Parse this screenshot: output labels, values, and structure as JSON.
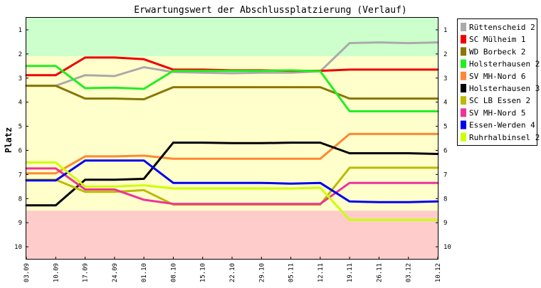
{
  "chart_data": {
    "type": "line",
    "title": "Erwartungswert der Abschlussplatzierung (Verlauf)",
    "xlabel": "",
    "ylabel": "Platz",
    "y_reversed": true,
    "ylim": [
      0.5,
      10.5
    ],
    "y_ticks": [
      "1",
      "2",
      "3",
      "4",
      "5",
      "6",
      "7",
      "8",
      "9",
      "10"
    ],
    "x": [
      "03.09",
      "10.09",
      "17.09",
      "24.09",
      "01.10",
      "08.10",
      "15.10",
      "22.10",
      "29.10",
      "05.11",
      "12.11",
      "19.11",
      "26.11",
      "03.12",
      "10.12"
    ],
    "bands": [
      {
        "from": 0.5,
        "to": 2.1,
        "color": "#ccffcc"
      },
      {
        "from": 2.1,
        "to": 8.5,
        "color": "#ffffcc"
      },
      {
        "from": 8.5,
        "to": 10.5,
        "color": "#ffcccc"
      }
    ],
    "grid": false,
    "legend_position": "right",
    "series": [
      {
        "name": "Rüttenscheid 2",
        "color": "#aaaaaa",
        "values": [
          3.32,
          3.32,
          2.88,
          2.92,
          2.55,
          2.75,
          2.78,
          2.8,
          2.78,
          2.78,
          2.72,
          1.55,
          1.52,
          1.55,
          1.52
        ]
      },
      {
        "name": "SC Mülheim 1",
        "color": "#ee0000",
        "values": [
          2.88,
          2.88,
          2.15,
          2.15,
          2.22,
          2.65,
          2.65,
          2.68,
          2.68,
          2.7,
          2.7,
          2.65,
          2.65,
          2.65,
          2.65
        ]
      },
      {
        "name": "WD Borbeck 2",
        "color": "#887700",
        "values": [
          3.32,
          3.32,
          3.85,
          3.85,
          3.88,
          3.38,
          3.38,
          3.38,
          3.38,
          3.38,
          3.38,
          3.85,
          3.85,
          3.85,
          3.85
        ]
      },
      {
        "name": "Holsterhausen 2",
        "color": "#22ee22",
        "values": [
          2.5,
          2.5,
          3.42,
          3.4,
          3.45,
          2.7,
          2.7,
          2.7,
          2.7,
          2.68,
          2.72,
          4.38,
          4.38,
          4.38,
          4.38
        ]
      },
      {
        "name": "SV MH-Nord 6",
        "color": "#ff8833",
        "values": [
          6.95,
          6.95,
          6.25,
          6.25,
          6.22,
          6.35,
          6.35,
          6.35,
          6.35,
          6.35,
          6.35,
          5.32,
          5.32,
          5.32,
          5.32
        ]
      },
      {
        "name": "Holsterhausen 3",
        "color": "#000000",
        "values": [
          8.28,
          8.28,
          7.22,
          7.22,
          7.18,
          5.68,
          5.68,
          5.7,
          5.7,
          5.68,
          5.68,
          6.12,
          6.12,
          6.12,
          6.15
        ]
      },
      {
        "name": "SC LB Essen 2",
        "color": "#bbbb00",
        "values": [
          7.22,
          7.22,
          7.72,
          7.72,
          7.65,
          8.25,
          8.25,
          8.25,
          8.25,
          8.25,
          8.25,
          6.72,
          6.72,
          6.72,
          6.72
        ]
      },
      {
        "name": "SV MH-Nord 5",
        "color": "#ee3399",
        "values": [
          6.75,
          6.75,
          7.62,
          7.62,
          8.05,
          8.22,
          8.22,
          8.22,
          8.22,
          8.22,
          8.22,
          7.35,
          7.35,
          7.35,
          7.35
        ]
      },
      {
        "name": "Essen-Werden 4",
        "color": "#0000ee",
        "values": [
          7.25,
          7.25,
          6.42,
          6.42,
          6.42,
          7.35,
          7.35,
          7.35,
          7.35,
          7.38,
          7.35,
          8.12,
          8.15,
          8.15,
          8.12
        ]
      },
      {
        "name": "Ruhrhalbinsel 2",
        "color": "#ccff00",
        "values": [
          6.5,
          6.5,
          7.5,
          7.5,
          7.45,
          7.58,
          7.58,
          7.58,
          7.58,
          7.58,
          7.55,
          8.88,
          8.88,
          8.88,
          8.88
        ]
      }
    ]
  }
}
